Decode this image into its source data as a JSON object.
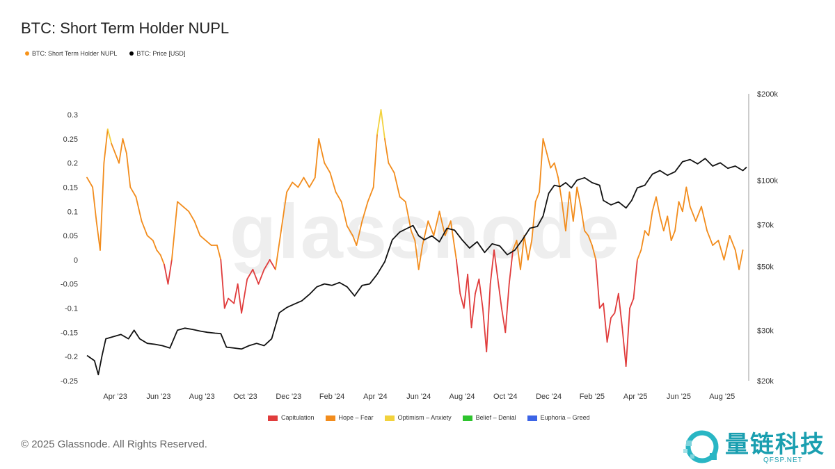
{
  "title": "BTC: Short Term Holder NUPL",
  "watermark": "glassnode",
  "legend_top": [
    {
      "label": "BTC: Short Term Holder NUPL",
      "color": "#f7931a"
    },
    {
      "label": "BTC: Price [USD]",
      "color": "#000000"
    }
  ],
  "legend_bottom": [
    {
      "label": "Capitulation",
      "color": "#e03c3c"
    },
    {
      "label": "Hope – Fear",
      "color": "#f28c1c"
    },
    {
      "label": "Optimism – Anxiety",
      "color": "#f2d23c"
    },
    {
      "label": "Belief – Denial",
      "color": "#2ec42e"
    },
    {
      "label": "Euphoria – Greed",
      "color": "#3c64e6"
    }
  ],
  "copyright": "© 2025 Glassnode. All Rights Reserved.",
  "logo": {
    "cn": "量链科技",
    "en": "QFSP.NET"
  },
  "chart_data": {
    "type": "line",
    "x_tick_labels": [
      "Apr '23",
      "Jun '23",
      "Aug '23",
      "Oct '23",
      "Dec '23",
      "Feb '24",
      "Apr '24",
      "Jun '24",
      "Aug '24",
      "Oct '24",
      "Dec '24",
      "Feb '25",
      "Apr '25",
      "Jun '25",
      "Aug '25"
    ],
    "y_left": {
      "ticks": [
        0.3,
        0.25,
        0.2,
        0.15,
        0.1,
        0.05,
        0,
        -0.05,
        -0.1,
        -0.15,
        -0.2,
        -0.25
      ],
      "labels": [
        "0.3",
        "0.25",
        "0.2",
        "0.15",
        "0.1",
        "0.05",
        "0",
        "-0.05",
        "-0.1",
        "-0.15",
        "-0.2",
        "-0.25"
      ],
      "range": [
        -0.25,
        0.3
      ]
    },
    "y_right": {
      "scale": "log",
      "ticks": [
        200000,
        100000,
        70000,
        50000,
        30000,
        20000
      ],
      "labels": [
        "$200k",
        "$100k",
        "$70k",
        "$50k",
        "$30k",
        "$20k"
      ],
      "range": [
        20000,
        200000
      ]
    },
    "x_range_months": [
      0,
      32
    ],
    "series": [
      {
        "name": "BTC: Short Term Holder NUPL",
        "zones": {
          "capitulation_below": 0,
          "optimism_above": 0.25
        },
        "points": [
          [
            0.0,
            0.17
          ],
          [
            0.3,
            0.15
          ],
          [
            0.5,
            0.08
          ],
          [
            0.7,
            0.02
          ],
          [
            0.9,
            0.2
          ],
          [
            1.1,
            0.27
          ],
          [
            1.3,
            0.24
          ],
          [
            1.5,
            0.22
          ],
          [
            1.7,
            0.2
          ],
          [
            1.9,
            0.25
          ],
          [
            2.1,
            0.22
          ],
          [
            2.3,
            0.15
          ],
          [
            2.6,
            0.13
          ],
          [
            2.9,
            0.08
          ],
          [
            3.2,
            0.05
          ],
          [
            3.5,
            0.04
          ],
          [
            3.7,
            0.02
          ],
          [
            3.9,
            0.01
          ],
          [
            4.1,
            -0.01
          ],
          [
            4.3,
            -0.05
          ],
          [
            4.5,
            0.0
          ],
          [
            4.8,
            0.12
          ],
          [
            5.1,
            0.11
          ],
          [
            5.4,
            0.1
          ],
          [
            5.7,
            0.08
          ],
          [
            6.0,
            0.05
          ],
          [
            6.3,
            0.04
          ],
          [
            6.6,
            0.03
          ],
          [
            6.9,
            0.03
          ],
          [
            7.1,
            0.0
          ],
          [
            7.3,
            -0.1
          ],
          [
            7.5,
            -0.08
          ],
          [
            7.8,
            -0.09
          ],
          [
            8.0,
            -0.05
          ],
          [
            8.2,
            -0.11
          ],
          [
            8.5,
            -0.04
          ],
          [
            8.8,
            -0.02
          ],
          [
            9.1,
            -0.05
          ],
          [
            9.4,
            -0.02
          ],
          [
            9.7,
            0.0
          ],
          [
            10.0,
            -0.02
          ],
          [
            10.3,
            0.06
          ],
          [
            10.6,
            0.14
          ],
          [
            10.9,
            0.16
          ],
          [
            11.2,
            0.15
          ],
          [
            11.5,
            0.17
          ],
          [
            11.8,
            0.15
          ],
          [
            12.1,
            0.17
          ],
          [
            12.3,
            0.25
          ],
          [
            12.6,
            0.2
          ],
          [
            12.9,
            0.18
          ],
          [
            13.2,
            0.14
          ],
          [
            13.5,
            0.12
          ],
          [
            13.8,
            0.07
          ],
          [
            14.1,
            0.05
          ],
          [
            14.3,
            0.03
          ],
          [
            14.6,
            0.08
          ],
          [
            14.9,
            0.12
          ],
          [
            15.2,
            0.15
          ],
          [
            15.4,
            0.26
          ],
          [
            15.6,
            0.31
          ],
          [
            15.8,
            0.25
          ],
          [
            16.0,
            0.2
          ],
          [
            16.3,
            0.18
          ],
          [
            16.6,
            0.13
          ],
          [
            16.9,
            0.12
          ],
          [
            17.2,
            0.06
          ],
          [
            17.4,
            0.04
          ],
          [
            17.6,
            -0.02
          ],
          [
            17.8,
            0.03
          ],
          [
            18.1,
            0.08
          ],
          [
            18.4,
            0.05
          ],
          [
            18.7,
            0.1
          ],
          [
            19.0,
            0.05
          ],
          [
            19.3,
            0.08
          ],
          [
            19.6,
            0.0
          ],
          [
            19.8,
            -0.07
          ],
          [
            20.0,
            -0.1
          ],
          [
            20.2,
            -0.03
          ],
          [
            20.4,
            -0.14
          ],
          [
            20.6,
            -0.07
          ],
          [
            20.8,
            -0.04
          ],
          [
            21.0,
            -0.1
          ],
          [
            21.2,
            -0.19
          ],
          [
            21.4,
            -0.05
          ],
          [
            21.6,
            0.02
          ],
          [
            21.8,
            -0.04
          ],
          [
            22.0,
            -0.1
          ],
          [
            22.2,
            -0.15
          ],
          [
            22.4,
            -0.05
          ],
          [
            22.6,
            0.02
          ],
          [
            22.8,
            0.04
          ],
          [
            23.0,
            -0.02
          ],
          [
            23.2,
            0.05
          ],
          [
            23.4,
            0.0
          ],
          [
            23.6,
            0.04
          ],
          [
            23.8,
            0.12
          ],
          [
            24.0,
            0.14
          ],
          [
            24.2,
            0.25
          ],
          [
            24.4,
            0.22
          ],
          [
            24.6,
            0.19
          ],
          [
            24.8,
            0.2
          ],
          [
            25.0,
            0.17
          ],
          [
            25.2,
            0.12
          ],
          [
            25.4,
            0.06
          ],
          [
            25.6,
            0.14
          ],
          [
            25.8,
            0.08
          ],
          [
            26.0,
            0.15
          ],
          [
            26.2,
            0.11
          ],
          [
            26.4,
            0.06
          ],
          [
            26.6,
            0.05
          ],
          [
            26.8,
            0.03
          ],
          [
            27.0,
            0.0
          ],
          [
            27.2,
            -0.1
          ],
          [
            27.4,
            -0.09
          ],
          [
            27.6,
            -0.17
          ],
          [
            27.8,
            -0.12
          ],
          [
            28.0,
            -0.11
          ],
          [
            28.2,
            -0.07
          ],
          [
            28.4,
            -0.14
          ],
          [
            28.6,
            -0.22
          ],
          [
            28.8,
            -0.1
          ],
          [
            29.0,
            -0.08
          ],
          [
            29.2,
            0.0
          ],
          [
            29.4,
            0.02
          ],
          [
            29.6,
            0.06
          ],
          [
            29.8,
            0.05
          ],
          [
            30.0,
            0.1
          ],
          [
            30.2,
            0.13
          ],
          [
            30.4,
            0.09
          ],
          [
            30.6,
            0.06
          ],
          [
            30.8,
            0.09
          ],
          [
            31.0,
            0.04
          ],
          [
            31.2,
            0.06
          ],
          [
            31.4,
            0.12
          ],
          [
            31.6,
            0.1
          ],
          [
            31.8,
            0.15
          ],
          [
            32.0,
            0.11
          ],
          [
            32.3,
            0.08
          ],
          [
            32.6,
            0.11
          ],
          [
            32.9,
            0.06
          ],
          [
            33.2,
            0.03
          ],
          [
            33.5,
            0.04
          ],
          [
            33.8,
            0.0
          ],
          [
            34.1,
            0.05
          ],
          [
            34.4,
            0.02
          ],
          [
            34.6,
            -0.02
          ],
          [
            34.8,
            0.02
          ]
        ]
      },
      {
        "name": "BTC: Price [USD]",
        "points": [
          [
            0.0,
            24500
          ],
          [
            0.4,
            23500
          ],
          [
            0.6,
            21000
          ],
          [
            0.8,
            24500
          ],
          [
            1.0,
            28000
          ],
          [
            1.4,
            28500
          ],
          [
            1.8,
            29000
          ],
          [
            2.2,
            28000
          ],
          [
            2.5,
            30000
          ],
          [
            2.8,
            28000
          ],
          [
            3.2,
            27000
          ],
          [
            3.6,
            26800
          ],
          [
            4.0,
            26500
          ],
          [
            4.4,
            26000
          ],
          [
            4.8,
            30000
          ],
          [
            5.2,
            30500
          ],
          [
            5.6,
            30200
          ],
          [
            6.0,
            29800
          ],
          [
            6.4,
            29500
          ],
          [
            6.8,
            29300
          ],
          [
            7.1,
            29200
          ],
          [
            7.4,
            26200
          ],
          [
            7.8,
            26000
          ],
          [
            8.2,
            25800
          ],
          [
            8.6,
            26500
          ],
          [
            9.0,
            27000
          ],
          [
            9.4,
            26500
          ],
          [
            9.8,
            28000
          ],
          [
            10.2,
            34500
          ],
          [
            10.6,
            36000
          ],
          [
            11.0,
            37000
          ],
          [
            11.4,
            38000
          ],
          [
            11.8,
            40000
          ],
          [
            12.2,
            42500
          ],
          [
            12.6,
            43500
          ],
          [
            13.0,
            43000
          ],
          [
            13.4,
            44000
          ],
          [
            13.8,
            42500
          ],
          [
            14.2,
            39500
          ],
          [
            14.6,
            43000
          ],
          [
            15.0,
            43500
          ],
          [
            15.4,
            47000
          ],
          [
            15.8,
            52000
          ],
          [
            16.2,
            62000
          ],
          [
            16.6,
            66000
          ],
          [
            17.0,
            68000
          ],
          [
            17.3,
            69500
          ],
          [
            17.6,
            64000
          ],
          [
            17.9,
            62000
          ],
          [
            18.3,
            64000
          ],
          [
            18.7,
            61000
          ],
          [
            19.1,
            68000
          ],
          [
            19.5,
            67000
          ],
          [
            19.9,
            62000
          ],
          [
            20.3,
            58000
          ],
          [
            20.7,
            61000
          ],
          [
            21.1,
            56000
          ],
          [
            21.5,
            60000
          ],
          [
            21.9,
            59000
          ],
          [
            22.3,
            55000
          ],
          [
            22.7,
            57000
          ],
          [
            23.1,
            62000
          ],
          [
            23.5,
            68000
          ],
          [
            23.9,
            69000
          ],
          [
            24.2,
            75000
          ],
          [
            24.5,
            90000
          ],
          [
            24.8,
            96000
          ],
          [
            25.1,
            95000
          ],
          [
            25.4,
            98000
          ],
          [
            25.7,
            94000
          ],
          [
            26.0,
            100000
          ],
          [
            26.4,
            102000
          ],
          [
            26.8,
            98000
          ],
          [
            27.2,
            96000
          ],
          [
            27.4,
            85000
          ],
          [
            27.8,
            82000
          ],
          [
            28.2,
            84000
          ],
          [
            28.6,
            80000
          ],
          [
            28.9,
            85000
          ],
          [
            29.2,
            94000
          ],
          [
            29.6,
            96000
          ],
          [
            30.0,
            105000
          ],
          [
            30.4,
            108000
          ],
          [
            30.8,
            104000
          ],
          [
            31.2,
            107000
          ],
          [
            31.6,
            116000
          ],
          [
            32.0,
            118000
          ],
          [
            32.4,
            114000
          ],
          [
            32.8,
            119000
          ],
          [
            33.2,
            112000
          ],
          [
            33.6,
            115000
          ],
          [
            34.0,
            110000
          ],
          [
            34.4,
            112000
          ],
          [
            34.8,
            108000
          ],
          [
            35.0,
            111000
          ]
        ]
      }
    ]
  }
}
